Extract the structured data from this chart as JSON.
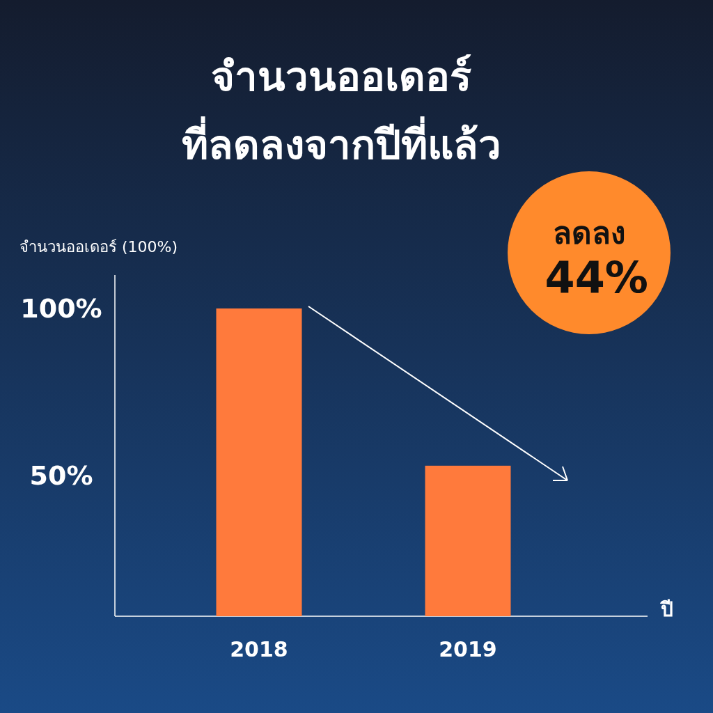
{
  "chart_data": {
    "type": "bar",
    "title": "จำนวนออเดอร์",
    "subtitle": "ที่ลดลงจากปีที่แล้ว",
    "ylabel": "จำนวนออเดอร์ (100%)",
    "xlabel": "ปี",
    "categories": [
      "2018",
      "2019"
    ],
    "values": [
      100,
      53
    ],
    "color": "#ff7a3c",
    "ylim": [
      8,
      110
    ],
    "yticks": [
      {
        "value": 50,
        "label": "50%"
      },
      {
        "value": 100,
        "label": "100%"
      }
    ],
    "annotations": [
      "ลดลง 44%"
    ]
  }
}
